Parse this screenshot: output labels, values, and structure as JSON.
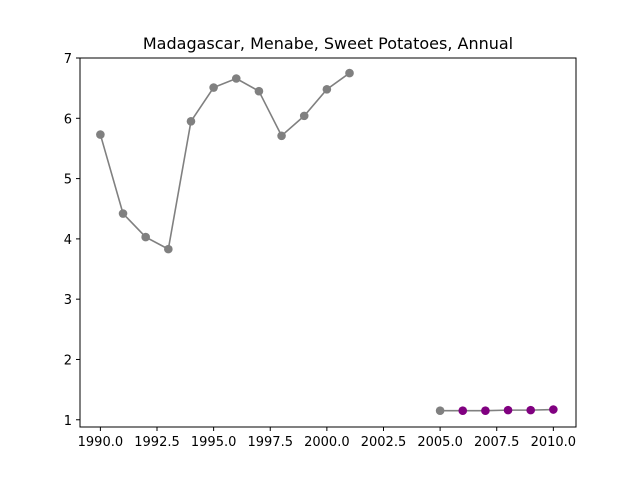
{
  "chart_data": {
    "type": "line",
    "title": "Madagascar, Menabe, Sweet Potatoes, Annual",
    "xlabel": "",
    "ylabel": "",
    "xlim": [
      1989.1,
      2011.0
    ],
    "ylim": [
      0.88,
      7.0
    ],
    "x_ticks": [
      1990.0,
      1992.5,
      1995.0,
      1997.5,
      2000.0,
      2002.5,
      2005.0,
      2007.5,
      2010.0
    ],
    "x_tick_labels": [
      "1990.0",
      "1992.5",
      "1995.0",
      "1997.5",
      "2000.0",
      "2002.5",
      "2005.0",
      "2007.5",
      "2010.0"
    ],
    "y_ticks": [
      1,
      2,
      3,
      4,
      5,
      6,
      7
    ],
    "y_tick_labels": [
      "1",
      "2",
      "3",
      "4",
      "5",
      "6",
      "7"
    ],
    "grid": false,
    "series": [
      {
        "line_color": "#808080",
        "segments": [
          {
            "x": [
              1990,
              1991,
              1992,
              1993,
              1994,
              1995,
              1996,
              1997,
              1998,
              1999,
              2000,
              2001
            ],
            "y": [
              5.73,
              4.42,
              4.03,
              3.83,
              5.95,
              6.51,
              6.66,
              6.45,
              5.71,
              6.04,
              6.48,
              6.75
            ],
            "marker_colors": [
              "#808080",
              "#808080",
              "#808080",
              "#808080",
              "#808080",
              "#808080",
              "#808080",
              "#808080",
              "#808080",
              "#808080",
              "#808080",
              "#808080"
            ]
          },
          {
            "x": [
              2005,
              2006,
              2007,
              2008,
              2009,
              2010
            ],
            "y": [
              1.15,
              1.15,
              1.15,
              1.16,
              1.16,
              1.17
            ],
            "marker_colors": [
              "#808080",
              "#800080",
              "#800080",
              "#800080",
              "#800080",
              "#800080"
            ]
          }
        ]
      }
    ]
  }
}
